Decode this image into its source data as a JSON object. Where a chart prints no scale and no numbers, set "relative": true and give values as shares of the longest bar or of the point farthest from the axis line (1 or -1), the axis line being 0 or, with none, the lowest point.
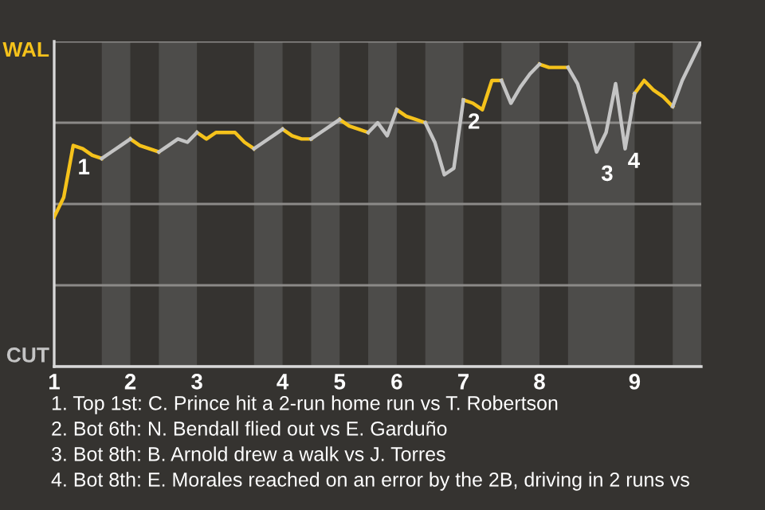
{
  "chart_data": {
    "type": "line",
    "relative": true,
    "categories": [
      "1",
      null,
      null,
      null,
      null,
      null,
      null,
      null,
      "2",
      null,
      null,
      null,
      null,
      null,
      null,
      "3",
      null,
      null,
      null,
      null,
      null,
      null,
      null,
      null,
      "4",
      null,
      null,
      null,
      null,
      null,
      "5",
      null,
      null,
      null,
      null,
      null,
      "6",
      null,
      null,
      null,
      null,
      null,
      null,
      "7",
      null,
      null,
      null,
      null,
      null,
      null,
      null,
      "8",
      null,
      null,
      null,
      null,
      null,
      null,
      null,
      null,
      null,
      "9",
      null,
      null,
      null,
      null,
      null,
      null,
      null
    ],
    "series": [
      {
        "name": "WAL",
        "color": "#f5c21b",
        "values": [
          0.46,
          0.52,
          0.68,
          0.67,
          0.65,
          0.64,
          null,
          null,
          0.7,
          0.68,
          0.67,
          0.66,
          null,
          null,
          null,
          0.72,
          0.7,
          0.72,
          0.72,
          0.72,
          0.69,
          0.67,
          null,
          null,
          0.73,
          0.71,
          0.7,
          0.7,
          null,
          null,
          0.76,
          0.74,
          0.73,
          0.72,
          null,
          null,
          0.79,
          0.77,
          0.76,
          0.75,
          null,
          null,
          null,
          0.82,
          0.81,
          0.79,
          0.88,
          0.88,
          null,
          null,
          null,
          0.93,
          0.92,
          0.92,
          0.92,
          null,
          null,
          null,
          null,
          null,
          null,
          0.84,
          0.88,
          0.85,
          0.83,
          0.8,
          null,
          null,
          null
        ]
      },
      {
        "name": "CUT",
        "color": "#c4c4c4",
        "values": [
          null,
          null,
          null,
          null,
          null,
          0.64,
          0.66,
          0.68,
          0.7,
          null,
          null,
          0.66,
          0.68,
          0.7,
          0.69,
          0.72,
          null,
          null,
          null,
          null,
          null,
          0.67,
          0.69,
          0.71,
          0.73,
          null,
          null,
          0.7,
          0.72,
          0.74,
          0.76,
          null,
          null,
          0.72,
          0.75,
          0.71,
          0.79,
          null,
          null,
          0.75,
          0.69,
          0.59,
          0.61,
          0.82,
          null,
          null,
          null,
          0.88,
          0.81,
          0.86,
          0.9,
          0.93,
          null,
          null,
          0.92,
          0.87,
          0.77,
          0.66,
          0.72,
          0.87,
          0.67,
          0.84,
          null,
          null,
          null,
          0.8,
          0.88,
          0.94,
          1.0
        ]
      }
    ],
    "grid": "y",
    "marker": "none",
    "line_style": "solid",
    "annotations": [
      {
        "text": "1",
        "y": 0.68
      },
      {
        "text": "2",
        "x": "7",
        "y": 0.82
      },
      {
        "text": "3",
        "y": 0.66
      },
      "4",
      "1. Top 1st: C. Prince hit a 2-run home run vs T. Robertson",
      "2. Bot 6th: N. Bendall flied out vs E. Garduño",
      "3. Bot 8th: B. Arnold drew a walk vs J. Torres",
      "4. Bot 8th: E. Morales reached on an error by the 2B, driving in 2 runs vs"
    ]
  }
}
